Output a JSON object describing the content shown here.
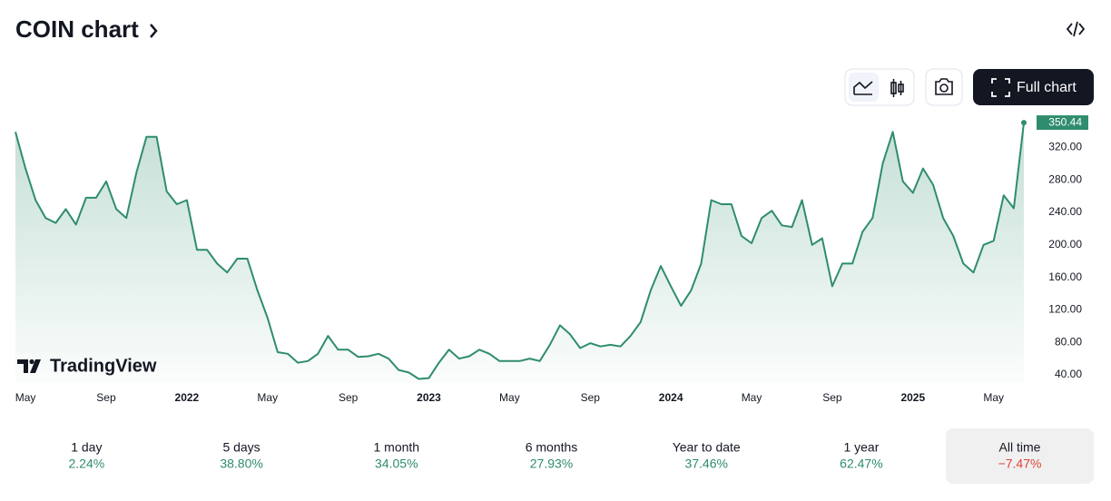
{
  "header": {
    "title": "COIN chart"
  },
  "toolbar": {
    "full_chart": "Full chart"
  },
  "watermark": "TradingView",
  "chart_data": {
    "type": "line",
    "color": "#2f8c6f",
    "categories": [
      null,
      "May",
      null,
      null,
      null,
      null,
      null,
      null,
      null,
      "Sep",
      null,
      null,
      null,
      null,
      null,
      null,
      null,
      "2022",
      null,
      null,
      null,
      null,
      null,
      null,
      null,
      "May",
      null,
      null,
      null,
      null,
      null,
      null,
      null,
      "Sep",
      null,
      null,
      null,
      null,
      null,
      null,
      null,
      "2023",
      null,
      null,
      null,
      null,
      null,
      null,
      null,
      "May",
      null,
      null,
      null,
      null,
      null,
      null,
      null,
      "Sep",
      null,
      null,
      null,
      null,
      null,
      null,
      null,
      "2024",
      null,
      null,
      null,
      null,
      null,
      null,
      null,
      "May",
      null,
      null,
      null,
      null,
      null,
      null,
      null,
      "Sep",
      null,
      null,
      null,
      null,
      null,
      null,
      null,
      "2025",
      null,
      null,
      null,
      null,
      null,
      null,
      null,
      "May",
      null,
      null,
      null
    ],
    "values": [
      339,
      294,
      255,
      233,
      227,
      244,
      225,
      258,
      258,
      278,
      244,
      233,
      289,
      333,
      333,
      266,
      250,
      255,
      194,
      194,
      177,
      166,
      183,
      183,
      144,
      110,
      68,
      66,
      55,
      57,
      66,
      88,
      71,
      71,
      62,
      63,
      66,
      60,
      46,
      43,
      35,
      36,
      55,
      71,
      60,
      63,
      71,
      66,
      57,
      57,
      57,
      60,
      57,
      77,
      101,
      90,
      73,
      79,
      75,
      77,
      75,
      88,
      105,
      144,
      174,
      149,
      125,
      144,
      177,
      255,
      250,
      250,
      211,
      202,
      233,
      242,
      224,
      222,
      255,
      200,
      208,
      149,
      177,
      177,
      216,
      233,
      300,
      339,
      278,
      264,
      294,
      274,
      233,
      211,
      177,
      166,
      200,
      205,
      261,
      245,
      350.44
    ],
    "ylim": [
      30,
      355
    ],
    "yticks": [
      {
        "value": 40,
        "label": "40.00"
      },
      {
        "value": 80,
        "label": "80.00"
      },
      {
        "value": 120,
        "label": "120.00"
      },
      {
        "value": 160,
        "label": "160.00"
      },
      {
        "value": 200,
        "label": "200.00"
      },
      {
        "value": 240,
        "label": "240.00"
      },
      {
        "value": 280,
        "label": "280.00"
      },
      {
        "value": 320,
        "label": "320.00"
      }
    ],
    "grid": false
  },
  "periods": [
    {
      "label": "1 day",
      "change": "2.24%"
    },
    {
      "label": "5 days",
      "change": "38.80%"
    },
    {
      "label": "1 month",
      "change": "34.05%"
    },
    {
      "label": "6 months",
      "change": "27.93%"
    },
    {
      "label": "Year to date",
      "change": "37.46%"
    },
    {
      "label": "1 year",
      "change": "62.47%"
    },
    {
      "label": "All time",
      "change": "−7.47%"
    }
  ]
}
